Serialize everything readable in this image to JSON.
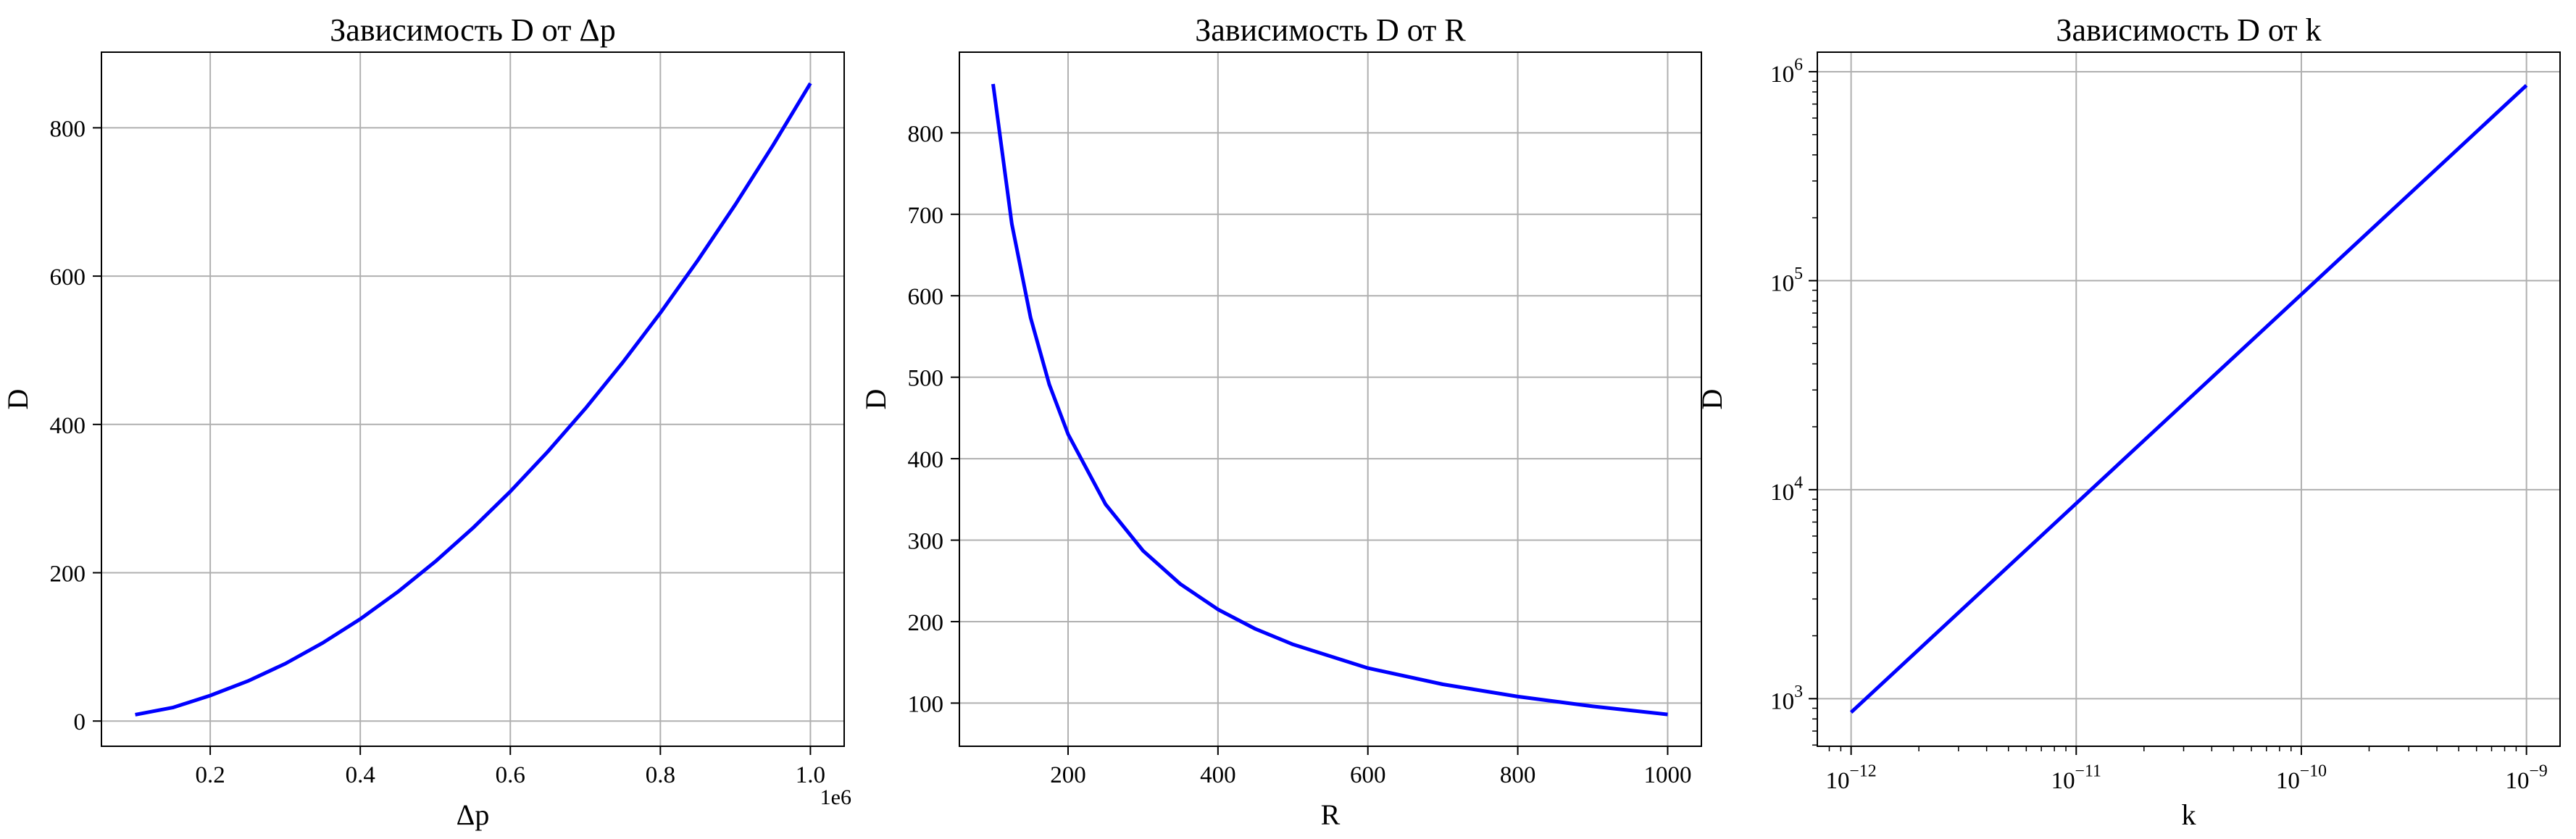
{
  "chart_data": [
    {
      "type": "line",
      "title": "Зависимость D от Δp",
      "xlabel": "Δp",
      "ylabel": "D",
      "x_offset_label": "1e6",
      "xscale": "linear",
      "yscale": "linear",
      "xlim": [
        55000,
        1045000
      ],
      "ylim": [
        -34,
        902
      ],
      "xticks": [
        0.2,
        0.4,
        0.6,
        0.8,
        1.0
      ],
      "xtick_labels": [
        "0.2",
        "0.4",
        "0.6",
        "0.8",
        "1.0"
      ],
      "xtick_multiplier": 1000000,
      "yticks": [
        0,
        200,
        400,
        600,
        800
      ],
      "ytick_labels": [
        "0",
        "200",
        "400",
        "600",
        "800"
      ],
      "grid": true,
      "color": "#0000ff",
      "series": [
        {
          "x": [
            100000,
            150000,
            200000,
            250000,
            300000,
            350000,
            400000,
            450000,
            500000,
            550000,
            600000,
            650000,
            700000,
            750000,
            800000,
            850000,
            900000,
            950000,
            1000000
          ],
          "y": [
            8.6,
            18.2,
            34.4,
            53.8,
            77.4,
            105.4,
            137.6,
            174.2,
            215.0,
            260.2,
            309.6,
            363.4,
            421.4,
            483.8,
            550.4,
            621.4,
            696.6,
            776.2,
            860.0
          ]
        }
      ]
    },
    {
      "type": "line",
      "title": "Зависимость D от R",
      "xlabel": "R",
      "ylabel": "D",
      "xscale": "linear",
      "yscale": "linear",
      "xlim": [
        55,
        1045
      ],
      "ylim": [
        47,
        899
      ],
      "xticks": [
        200,
        400,
        600,
        800,
        1000
      ],
      "xtick_labels": [
        "200",
        "400",
        "600",
        "800",
        "1000"
      ],
      "yticks": [
        100,
        200,
        300,
        400,
        500,
        600,
        700,
        800
      ],
      "ytick_labels": [
        "100",
        "200",
        "300",
        "400",
        "500",
        "600",
        "700",
        "800"
      ],
      "grid": true,
      "color": "#0000ff",
      "series": [
        {
          "x": [
            100,
            125,
            150,
            175,
            200,
            250,
            300,
            350,
            400,
            450,
            500,
            600,
            700,
            800,
            900,
            1000
          ],
          "y": [
            860,
            688,
            573,
            491,
            430,
            344,
            287,
            246,
            215,
            191,
            172,
            143,
            123,
            108,
            96,
            86
          ]
        }
      ]
    },
    {
      "type": "line",
      "title": "Зависимость D от k",
      "xlabel": "k",
      "ylabel": "D",
      "xscale": "log",
      "yscale": "log",
      "xlim": [
        7.08e-13,
        1.41e-09
      ],
      "ylim": [
        592,
        1240000.0
      ],
      "xticks": [
        1e-12,
        1e-11,
        1e-10,
        1e-09
      ],
      "xtick_base": "10",
      "xtick_exponents": [
        "−12",
        "−11",
        "−10",
        "−9"
      ],
      "yticks": [
        1000,
        10000,
        100000,
        1000000
      ],
      "ytick_base": "10",
      "ytick_exponents": [
        "3",
        "4",
        "5",
        "6"
      ],
      "grid": true,
      "color": "#0000ff",
      "series": [
        {
          "x": [
            1e-12,
            1e-11,
            1e-10,
            1e-09
          ],
          "y": [
            860,
            8600,
            86000,
            860000
          ]
        }
      ]
    }
  ]
}
